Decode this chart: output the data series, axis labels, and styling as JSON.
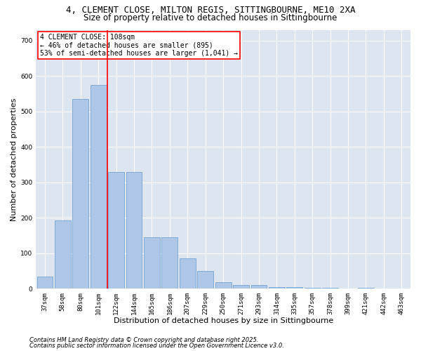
{
  "title1": "4, CLEMENT CLOSE, MILTON REGIS, SITTINGBOURNE, ME10 2XA",
  "title2": "Size of property relative to detached houses in Sittingbourne",
  "xlabel": "Distribution of detached houses by size in Sittingbourne",
  "ylabel": "Number of detached properties",
  "categories": [
    "37sqm",
    "58sqm",
    "80sqm",
    "101sqm",
    "122sqm",
    "144sqm",
    "165sqm",
    "186sqm",
    "207sqm",
    "229sqm",
    "250sqm",
    "271sqm",
    "293sqm",
    "314sqm",
    "335sqm",
    "357sqm",
    "378sqm",
    "399sqm",
    "421sqm",
    "442sqm",
    "463sqm"
  ],
  "values": [
    35,
    192,
    535,
    575,
    330,
    330,
    145,
    145,
    85,
    50,
    18,
    10,
    10,
    5,
    5,
    3,
    3,
    0,
    3,
    0,
    0
  ],
  "bar_color": "#aec6e8",
  "bar_edge_color": "#6699cc",
  "vline_x": 3.5,
  "vline_color": "red",
  "annotation_title": "4 CLEMENT CLOSE: 108sqm",
  "annotation_line1": "← 46% of detached houses are smaller (895)",
  "annotation_line2": "53% of semi-detached houses are larger (1,041) →",
  "annotation_box_color": "white",
  "annotation_box_edge": "red",
  "footer1": "Contains HM Land Registry data © Crown copyright and database right 2025.",
  "footer2": "Contains public sector information licensed under the Open Government Licence v3.0.",
  "bg_color": "#dde6f0",
  "ylim": [
    0,
    730
  ],
  "yticks": [
    0,
    100,
    200,
    300,
    400,
    500,
    600,
    700
  ],
  "title_fontsize": 9,
  "subtitle_fontsize": 8.5,
  "tick_fontsize": 6.5,
  "axis_label_fontsize": 8,
  "footer_fontsize": 6,
  "annotation_fontsize": 7
}
